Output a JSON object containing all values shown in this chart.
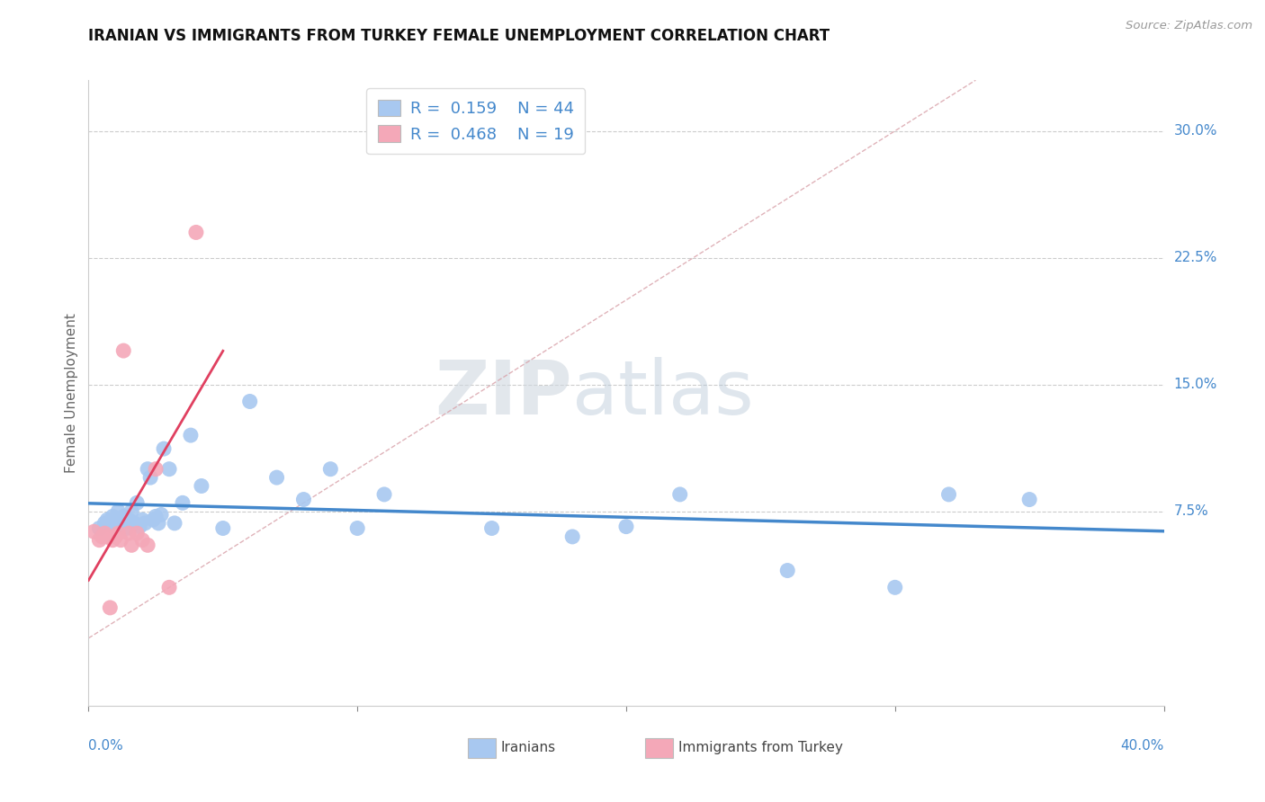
{
  "title": "IRANIAN VS IMMIGRANTS FROM TURKEY FEMALE UNEMPLOYMENT CORRELATION CHART",
  "source": "Source: ZipAtlas.com",
  "ylabel": "Female Unemployment",
  "ytick_labels": [
    "7.5%",
    "15.0%",
    "22.5%",
    "30.0%"
  ],
  "ytick_values": [
    0.075,
    0.15,
    0.225,
    0.3
  ],
  "xlim": [
    0.0,
    0.4
  ],
  "ylim": [
    -0.04,
    0.33
  ],
  "color_blue": "#a8c8f0",
  "color_pink": "#f4a8b8",
  "line_blue": "#4488cc",
  "line_pink": "#e04060",
  "line_gray": "#ccaaaa",
  "watermark_zip": "ZIP",
  "watermark_atlas": "atlas",
  "iranians_x": [
    0.004,
    0.006,
    0.007,
    0.008,
    0.009,
    0.01,
    0.011,
    0.012,
    0.013,
    0.014,
    0.015,
    0.016,
    0.017,
    0.018,
    0.019,
    0.02,
    0.021,
    0.022,
    0.023,
    0.024,
    0.025,
    0.026,
    0.027,
    0.028,
    0.03,
    0.032,
    0.035,
    0.038,
    0.042,
    0.05,
    0.06,
    0.07,
    0.08,
    0.09,
    0.1,
    0.11,
    0.15,
    0.18,
    0.2,
    0.22,
    0.26,
    0.3,
    0.32,
    0.35
  ],
  "iranians_y": [
    0.065,
    0.068,
    0.07,
    0.067,
    0.072,
    0.068,
    0.075,
    0.068,
    0.072,
    0.065,
    0.07,
    0.075,
    0.068,
    0.08,
    0.066,
    0.07,
    0.068,
    0.1,
    0.095,
    0.07,
    0.072,
    0.068,
    0.073,
    0.112,
    0.1,
    0.068,
    0.08,
    0.12,
    0.09,
    0.065,
    0.14,
    0.095,
    0.082,
    0.1,
    0.065,
    0.085,
    0.065,
    0.06,
    0.066,
    0.085,
    0.04,
    0.03,
    0.085,
    0.082
  ],
  "turkey_x": [
    0.002,
    0.004,
    0.005,
    0.006,
    0.007,
    0.008,
    0.009,
    0.01,
    0.011,
    0.012,
    0.013,
    0.015,
    0.016,
    0.018,
    0.02,
    0.022,
    0.025,
    0.03,
    0.04
  ],
  "turkey_y": [
    0.063,
    0.058,
    0.06,
    0.062,
    0.06,
    0.018,
    0.058,
    0.06,
    0.062,
    0.058,
    0.17,
    0.062,
    0.055,
    0.062,
    0.058,
    0.055,
    0.1,
    0.03,
    0.24
  ]
}
